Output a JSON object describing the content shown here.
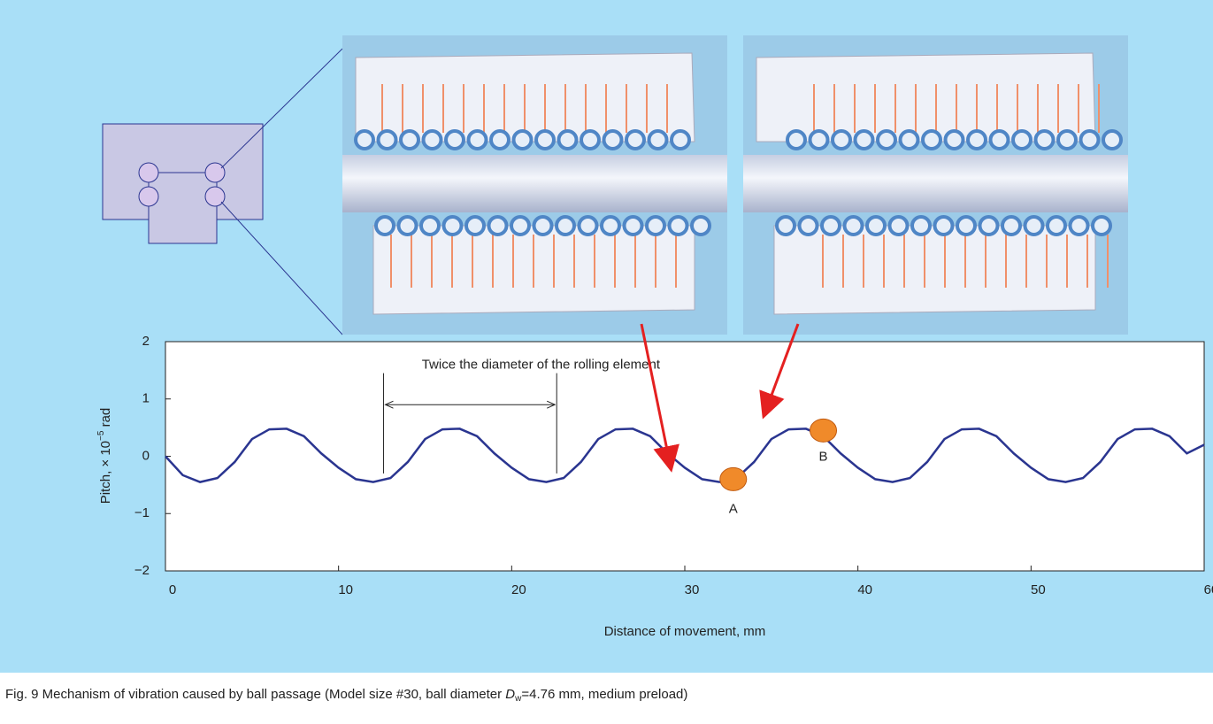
{
  "chart_data": {
    "type": "line",
    "xlabel": "Distance of movement, mm",
    "ylabel": [
      "Pitch, × 10",
      "−5",
      " rad"
    ],
    "caption": [
      "Fig. 9  Mechanism of vibration caused by ball passage (Model size #30, ball diameter ",
      "D",
      "w",
      "=4.76 mm, medium preload)"
    ],
    "x": [
      0,
      1,
      2,
      3,
      4,
      5,
      6,
      7,
      8,
      9,
      10,
      11,
      12,
      13,
      14,
      15,
      16,
      17,
      18,
      19,
      20,
      21,
      22,
      23,
      24,
      25,
      26,
      27,
      28,
      29,
      30,
      31,
      32,
      33,
      34,
      35,
      36,
      37,
      38,
      39,
      40,
      41,
      42,
      43,
      44,
      45,
      46,
      47,
      48,
      49,
      50,
      51,
      52,
      53,
      54,
      55,
      56,
      57,
      58,
      59,
      60
    ],
    "series": [
      {
        "color": "#2a3590",
        "values": [
          0,
          -0.33,
          -0.45,
          -0.38,
          -0.1,
          0.3,
          0.47,
          0.48,
          0.35,
          0.05,
          -0.2,
          -0.4,
          -0.45,
          -0.38,
          -0.1,
          0.3,
          0.47,
          0.48,
          0.35,
          0.05,
          -0.2,
          -0.4,
          -0.45,
          -0.38,
          -0.1,
          0.3,
          0.47,
          0.48,
          0.35,
          0.05,
          -0.2,
          -0.4,
          -0.45,
          -0.38,
          -0.1,
          0.3,
          0.47,
          0.48,
          0.35,
          0.05,
          -0.2,
          -0.4,
          -0.45,
          -0.38,
          -0.1,
          0.3,
          0.47,
          0.48,
          0.35,
          0.05,
          -0.2,
          -0.4,
          -0.45,
          -0.38,
          -0.1,
          0.3,
          0.47,
          0.48,
          0.35,
          0.05,
          0.2
        ]
      }
    ],
    "xlim": [
      0,
      60
    ],
    "ylim": [
      -2,
      2
    ],
    "xticks": [
      0,
      10,
      20,
      30,
      40,
      50,
      60
    ],
    "yticks": [
      {
        "value": -2,
        "label": "−2"
      },
      {
        "value": -1,
        "label": "−1"
      },
      0,
      1,
      2
    ],
    "span": {
      "label": "Twice the diameter of the rolling element",
      "x": [
        12.6,
        22.6
      ]
    },
    "points": [
      {
        "label": "A",
        "x": 32.8,
        "y": -0.4,
        "color": "#f08a2a"
      },
      {
        "label": "B",
        "x": 38,
        "y": 0.45,
        "color": "#f08a2a"
      }
    ]
  }
}
